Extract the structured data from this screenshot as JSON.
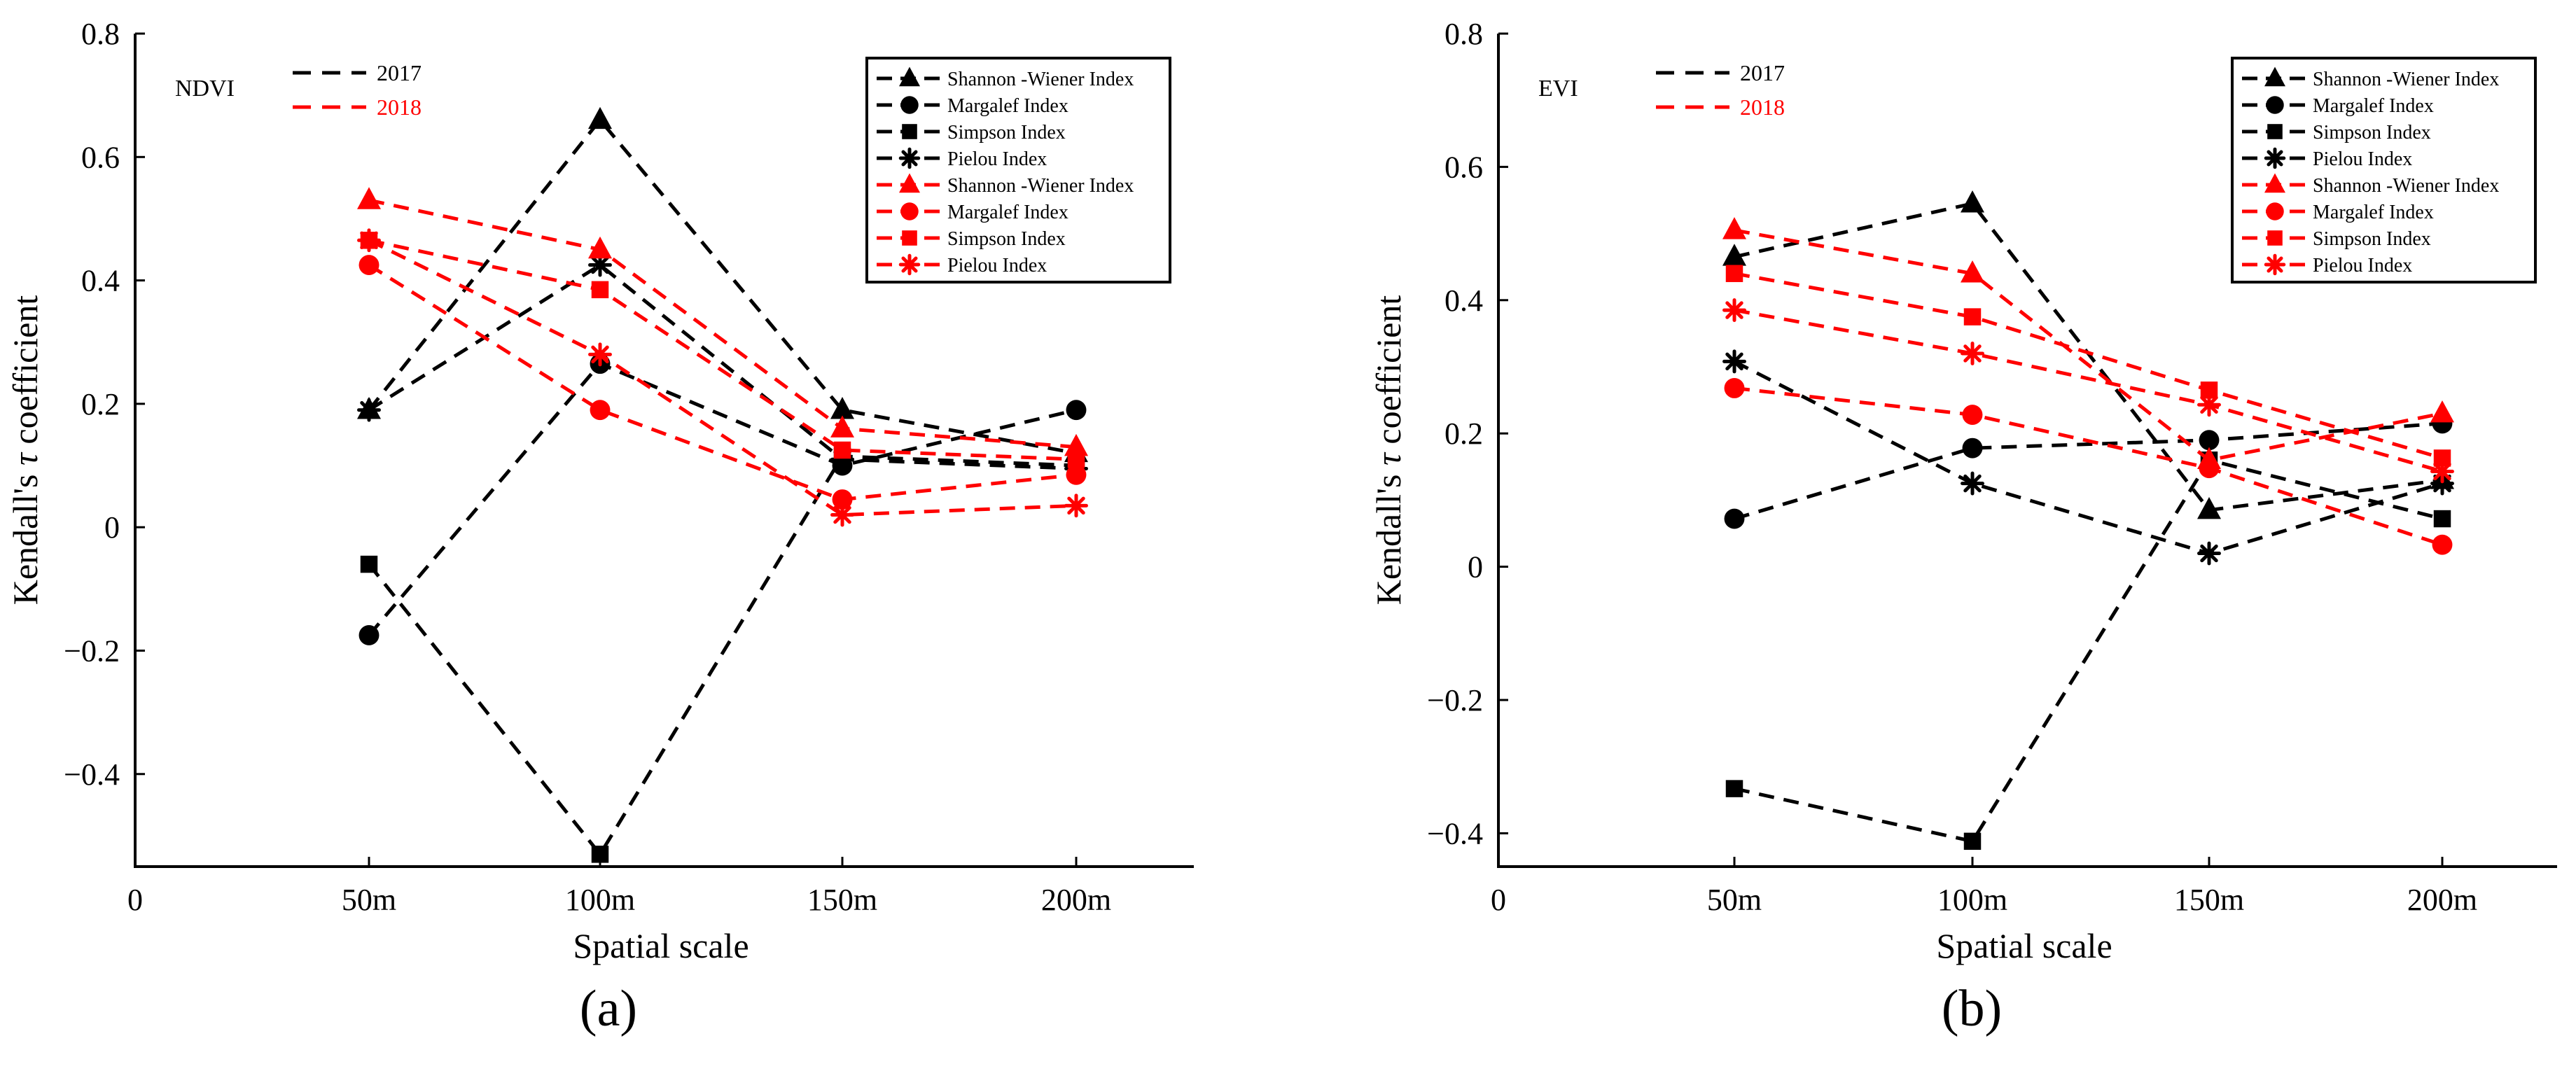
{
  "colors": {
    "year_2017": "#000000",
    "year_2018": "#ff0000",
    "axis": "#000000"
  },
  "chart_data": [
    {
      "type": "line",
      "panel_label": "(a)",
      "index_label": "NDVI",
      "xlabel": "Spatial scale",
      "ylabel_prefix": "Kendall's ",
      "ylabel_symbol": "τ",
      "ylabel_suffix": " coefficient",
      "x_origin_label": "0",
      "categories": [
        "50m",
        "100m",
        "150m",
        "200m"
      ],
      "ylim": [
        -0.55,
        0.8
      ],
      "yticks": [
        -0.4,
        -0.2,
        0,
        0.2,
        0.4,
        0.6,
        0.8
      ],
      "ytick_labels": [
        "−0.4",
        "−0.2",
        "0",
        "0.2",
        "0.4",
        "0.6",
        "0.8"
      ],
      "year_legend": [
        {
          "label": "2017",
          "color": "#000000"
        },
        {
          "label": "2018",
          "color": "#ff0000"
        }
      ],
      "legend_position": "top-right",
      "series": [
        {
          "name": "Shannon -Wiener Index",
          "year": "2017",
          "marker": "triangle",
          "color": "#000000",
          "values": [
            0.19,
            0.66,
            0.19,
            0.12
          ]
        },
        {
          "name": "Margalef Index",
          "year": "2017",
          "marker": "circle",
          "color": "#000000",
          "values": [
            -0.175,
            0.265,
            0.1,
            0.19
          ]
        },
        {
          "name": "Simpson Index",
          "year": "2017",
          "marker": "square",
          "color": "#000000",
          "values": [
            -0.06,
            -0.53,
            0.115,
            0.1
          ]
        },
        {
          "name": "Pielou Index",
          "year": "2017",
          "marker": "asterisk",
          "color": "#000000",
          "values": [
            0.19,
            0.425,
            0.11,
            0.095
          ]
        },
        {
          "name": "Shannon -Wiener Index",
          "year": "2018",
          "marker": "triangle",
          "color": "#ff0000",
          "values": [
            0.53,
            0.45,
            0.16,
            0.13
          ]
        },
        {
          "name": "Margalef Index",
          "year": "2018",
          "marker": "circle",
          "color": "#ff0000",
          "values": [
            0.425,
            0.19,
            0.045,
            0.085
          ]
        },
        {
          "name": "Simpson Index",
          "year": "2018",
          "marker": "square",
          "color": "#ff0000",
          "values": [
            0.465,
            0.385,
            0.125,
            0.11
          ]
        },
        {
          "name": "Pielou Index",
          "year": "2018",
          "marker": "asterisk",
          "color": "#ff0000",
          "values": [
            0.465,
            0.28,
            0.02,
            0.035
          ]
        }
      ]
    },
    {
      "type": "line",
      "panel_label": "(b)",
      "index_label": "EVI",
      "xlabel": "Spatial scale",
      "ylabel_prefix": "Kendall's ",
      "ylabel_symbol": "τ",
      "ylabel_suffix": " coefficient",
      "x_origin_label": "0",
      "categories": [
        "50m",
        "100m",
        "150m",
        "200m"
      ],
      "ylim": [
        -0.45,
        0.8
      ],
      "yticks": [
        -0.4,
        -0.2,
        0,
        0.2,
        0.4,
        0.6,
        0.8
      ],
      "ytick_labels": [
        "−0.4",
        "−0.2",
        "0",
        "0.2",
        "0.4",
        "0.6",
        "0.8"
      ],
      "year_legend": [
        {
          "label": "2017",
          "color": "#000000"
        },
        {
          "label": "2018",
          "color": "#ff0000"
        }
      ],
      "legend_position": "top-right",
      "series": [
        {
          "name": "Shannon -Wiener Index",
          "year": "2017",
          "marker": "triangle",
          "color": "#000000",
          "values": [
            0.465,
            0.545,
            0.085,
            0.13
          ]
        },
        {
          "name": "Margalef Index",
          "year": "2017",
          "marker": "circle",
          "color": "#000000",
          "values": [
            0.072,
            0.178,
            0.19,
            0.215
          ]
        },
        {
          "name": "Simpson Index",
          "year": "2017",
          "marker": "square",
          "color": "#000000",
          "values": [
            -0.333,
            -0.412,
            0.16,
            0.072
          ]
        },
        {
          "name": "Pielou Index",
          "year": "2017",
          "marker": "asterisk",
          "color": "#000000",
          "values": [
            0.308,
            0.125,
            0.02,
            0.125
          ]
        },
        {
          "name": "Shannon -Wiener Index",
          "year": "2018",
          "marker": "triangle",
          "color": "#ff0000",
          "values": [
            0.505,
            0.44,
            0.16,
            0.23
          ]
        },
        {
          "name": "Margalef Index",
          "year": "2018",
          "marker": "circle",
          "color": "#ff0000",
          "values": [
            0.268,
            0.228,
            0.148,
            0.033
          ]
        },
        {
          "name": "Simpson Index",
          "year": "2018",
          "marker": "square",
          "color": "#ff0000",
          "values": [
            0.44,
            0.375,
            0.265,
            0.163
          ]
        },
        {
          "name": "Pielou Index",
          "year": "2018",
          "marker": "asterisk",
          "color": "#ff0000",
          "values": [
            0.385,
            0.32,
            0.243,
            0.143
          ]
        }
      ]
    }
  ]
}
